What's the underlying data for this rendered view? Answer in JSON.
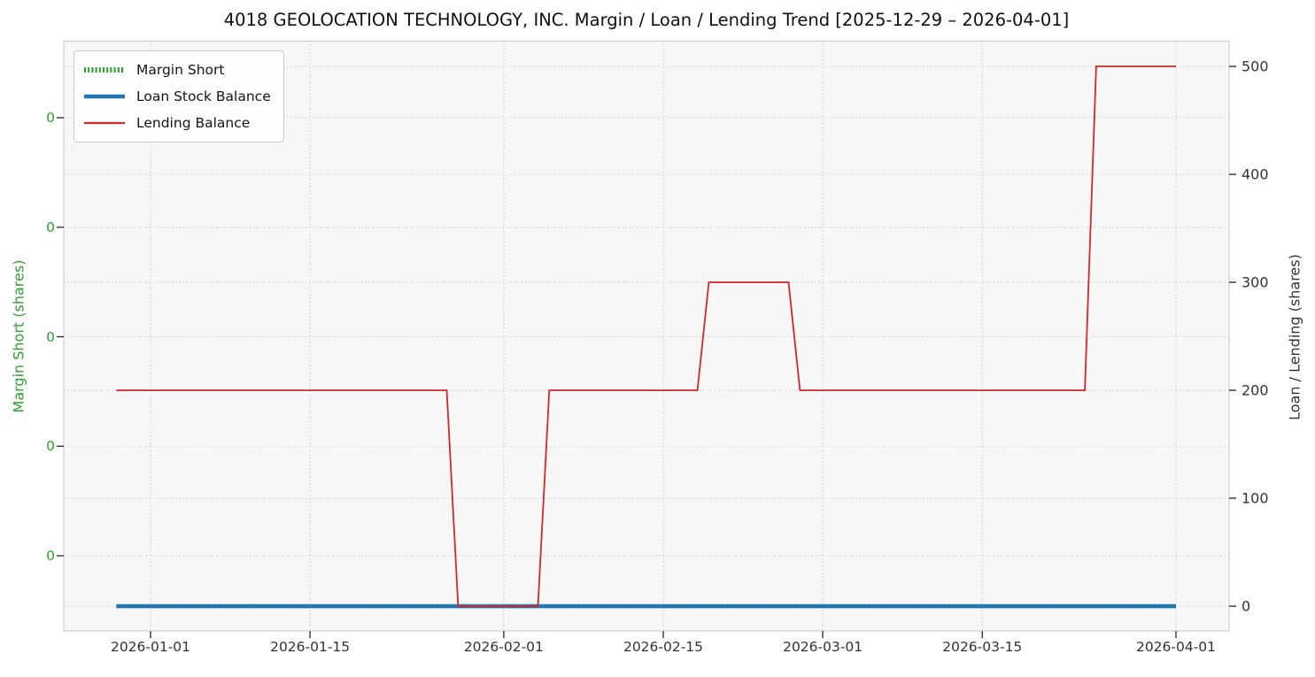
{
  "chart_data": {
    "type": "line",
    "title": "4018 GEOLOCATION TECHNOLOGY, INC. Margin / Loan / Lending Trend [2025-12-29 – 2026-04-01]",
    "x_axis": {
      "tick_labels": [
        "2026-01-01",
        "2026-01-15",
        "2026-02-01",
        "2026-02-15",
        "2026-03-01",
        "2026-03-15",
        "2026-04-01"
      ],
      "data_range": [
        "2025-12-29",
        "2026-04-01"
      ]
    },
    "left_axis": {
      "label": "Margin Short (shares)",
      "color": "#2ca02c",
      "tick_labels": [
        "0",
        "0",
        "0",
        "0",
        "0"
      ]
    },
    "right_axis": {
      "label": "Loan / Lending (shares)",
      "tick_labels": [
        0,
        100,
        200,
        300,
        400,
        500
      ]
    },
    "legend": {
      "position": "upper left",
      "entries": [
        "Margin Short",
        "Loan Stock Balance",
        "Lending Balance"
      ]
    },
    "grid": "dotted",
    "series": [
      {
        "name": "Margin Short",
        "axis": "left",
        "color": "#2ca02c",
        "line": "dotted-thick",
        "values_note": "constant 0 for entire range (hidden behind Loan Stock Balance line)",
        "points": [
          [
            "2025-12-29",
            0
          ],
          [
            "2026-04-01",
            0
          ]
        ]
      },
      {
        "name": "Loan Stock Balance",
        "axis": "right",
        "color": "#1f77b4",
        "line": "solid-thick",
        "points": [
          [
            "2025-12-29",
            0
          ],
          [
            "2026-04-01",
            0
          ]
        ]
      },
      {
        "name": "Lending Balance",
        "axis": "right",
        "color": "#d62728",
        "line": "solid-thin",
        "points": [
          [
            "2025-12-29",
            200
          ],
          [
            "2026-01-27",
            200
          ],
          [
            "2026-01-28",
            0
          ],
          [
            "2026-02-04",
            0
          ],
          [
            "2026-02-05",
            200
          ],
          [
            "2026-02-18",
            200
          ],
          [
            "2026-02-19",
            300
          ],
          [
            "2026-02-26",
            300
          ],
          [
            "2026-02-27",
            200
          ],
          [
            "2026-03-24",
            200
          ],
          [
            "2026-03-25",
            500
          ],
          [
            "2026-04-01",
            500
          ]
        ]
      }
    ]
  }
}
